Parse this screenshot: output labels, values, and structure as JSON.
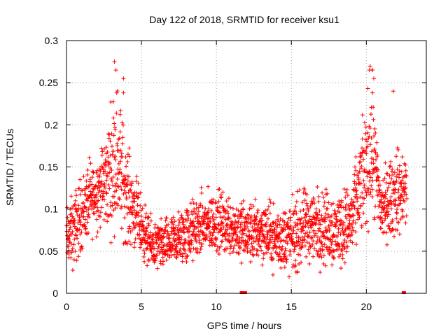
{
  "chart_data": {
    "type": "scatter",
    "title": "Day 122 of 2018, SRMTID for receiver ksu1",
    "xlabel": "GPS time / hours",
    "ylabel": "SRMTID / TECUs",
    "xlim": [
      0,
      24
    ],
    "ylim": [
      0,
      0.3
    ],
    "x_ticks": [
      "0",
      "5",
      "10",
      "15",
      "20"
    ],
    "y_ticks": [
      "0",
      "0.05",
      "0.1",
      "0.15",
      "0.2",
      "0.25",
      "0.3"
    ],
    "grid": true,
    "marker": "+",
    "color": "#ff0000",
    "series": [
      {
        "name": "SRMTID",
        "envelope": [
          {
            "x": 0.0,
            "level": 0.065,
            "spread": 0.025
          },
          {
            "x": 0.5,
            "level": 0.075,
            "spread": 0.03
          },
          {
            "x": 1.0,
            "level": 0.095,
            "spread": 0.03
          },
          {
            "x": 1.5,
            "level": 0.11,
            "spread": 0.03
          },
          {
            "x": 2.0,
            "level": 0.12,
            "spread": 0.03
          },
          {
            "x": 2.5,
            "level": 0.13,
            "spread": 0.035
          },
          {
            "x": 3.0,
            "level": 0.15,
            "spread": 0.05
          },
          {
            "x": 3.3,
            "level": 0.17,
            "spread": 0.06
          },
          {
            "x": 3.7,
            "level": 0.14,
            "spread": 0.05
          },
          {
            "x": 4.0,
            "level": 0.12,
            "spread": 0.04
          },
          {
            "x": 4.5,
            "level": 0.1,
            "spread": 0.03
          },
          {
            "x": 5.0,
            "level": 0.08,
            "spread": 0.025
          },
          {
            "x": 5.5,
            "level": 0.06,
            "spread": 0.02
          },
          {
            "x": 6.0,
            "level": 0.055,
            "spread": 0.02
          },
          {
            "x": 7.0,
            "level": 0.06,
            "spread": 0.02
          },
          {
            "x": 8.0,
            "level": 0.07,
            "spread": 0.025
          },
          {
            "x": 9.0,
            "level": 0.08,
            "spread": 0.025
          },
          {
            "x": 10.0,
            "level": 0.085,
            "spread": 0.025
          },
          {
            "x": 11.0,
            "level": 0.08,
            "spread": 0.025
          },
          {
            "x": 12.0,
            "level": 0.07,
            "spread": 0.025
          },
          {
            "x": 13.0,
            "level": 0.075,
            "spread": 0.025
          },
          {
            "x": 14.0,
            "level": 0.065,
            "spread": 0.025
          },
          {
            "x": 15.0,
            "level": 0.065,
            "spread": 0.03
          },
          {
            "x": 16.0,
            "level": 0.08,
            "spread": 0.03
          },
          {
            "x": 17.0,
            "level": 0.08,
            "spread": 0.03
          },
          {
            "x": 18.0,
            "level": 0.075,
            "spread": 0.03
          },
          {
            "x": 19.0,
            "level": 0.085,
            "spread": 0.03
          },
          {
            "x": 19.5,
            "level": 0.12,
            "spread": 0.035
          },
          {
            "x": 20.0,
            "level": 0.15,
            "spread": 0.05
          },
          {
            "x": 20.3,
            "level": 0.18,
            "spread": 0.06
          },
          {
            "x": 20.7,
            "level": 0.13,
            "spread": 0.04
          },
          {
            "x": 21.0,
            "level": 0.1,
            "spread": 0.03
          },
          {
            "x": 21.5,
            "level": 0.11,
            "spread": 0.03
          },
          {
            "x": 22.0,
            "level": 0.12,
            "spread": 0.035
          },
          {
            "x": 22.7,
            "level": 0.12,
            "spread": 0.03
          }
        ],
        "peaks": [
          {
            "x": 3.2,
            "y": 0.275
          },
          {
            "x": 3.3,
            "y": 0.265
          },
          {
            "x": 3.8,
            "y": 0.255
          },
          {
            "x": 3.8,
            "y": 0.238
          },
          {
            "x": 20.2,
            "y": 0.265
          },
          {
            "x": 20.4,
            "y": 0.265
          },
          {
            "x": 20.5,
            "y": 0.255
          },
          {
            "x": 21.8,
            "y": 0.24
          }
        ],
        "zeros": [
          {
            "x": 11.7,
            "y": 0
          },
          {
            "x": 11.9,
            "y": 0
          },
          {
            "x": 22.5,
            "y": 0
          }
        ]
      }
    ]
  }
}
